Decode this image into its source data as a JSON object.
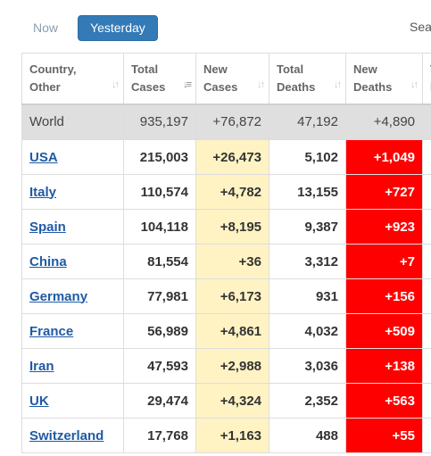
{
  "tabs": {
    "now": "Now",
    "yesterday": "Yesterday"
  },
  "search": {
    "label": "Search:"
  },
  "columns": [
    {
      "line1": "Country,",
      "line2": "Other"
    },
    {
      "line1": "Total",
      "line2": "Cases"
    },
    {
      "line1": "New",
      "line2": "Cases"
    },
    {
      "line1": "Total",
      "line2": "Deaths"
    },
    {
      "line1": "New",
      "line2": "Deaths"
    },
    {
      "line1": "T",
      "line2": "R"
    }
  ],
  "sort_icon": "sort-arrows-icon",
  "world": {
    "country": "World",
    "total_cases": "935,197",
    "new_cases": "+76,872",
    "total_deaths": "47,192",
    "new_deaths": "+4,890"
  },
  "rows": [
    {
      "country": "USA",
      "total_cases": "215,003",
      "new_cases": "+26,473",
      "total_deaths": "5,102",
      "new_deaths": "+1,049"
    },
    {
      "country": "Italy",
      "total_cases": "110,574",
      "new_cases": "+4,782",
      "total_deaths": "13,155",
      "new_deaths": "+727"
    },
    {
      "country": "Spain",
      "total_cases": "104,118",
      "new_cases": "+8,195",
      "total_deaths": "9,387",
      "new_deaths": "+923"
    },
    {
      "country": "China",
      "total_cases": "81,554",
      "new_cases": "+36",
      "total_deaths": "3,312",
      "new_deaths": "+7"
    },
    {
      "country": "Germany",
      "total_cases": "77,981",
      "new_cases": "+6,173",
      "total_deaths": "931",
      "new_deaths": "+156"
    },
    {
      "country": "France",
      "total_cases": "56,989",
      "new_cases": "+4,861",
      "total_deaths": "4,032",
      "new_deaths": "+509"
    },
    {
      "country": "Iran",
      "total_cases": "47,593",
      "new_cases": "+2,988",
      "total_deaths": "3,036",
      "new_deaths": "+138"
    },
    {
      "country": "UK",
      "total_cases": "29,474",
      "new_cases": "+4,324",
      "total_deaths": "2,352",
      "new_deaths": "+563"
    },
    {
      "country": "Switzerland",
      "total_cases": "17,768",
      "new_cases": "+1,163",
      "total_deaths": "488",
      "new_deaths": "+55"
    }
  ],
  "colors": {
    "active_tab": "#337ab7",
    "new_cases_bg": "#fff3c4",
    "new_deaths_bg": "#ff0000",
    "world_row_bg": "#dfdfdf",
    "link": "#1f5aa6"
  }
}
